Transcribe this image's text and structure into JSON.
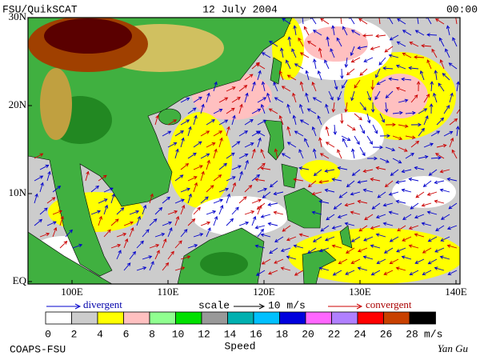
{
  "header": {
    "left": "FSU/QuikSCAT",
    "center": "12 July 2004",
    "right": "00:00"
  },
  "map": {
    "lat_labels": [
      "30N",
      "20N",
      "10N",
      "EQ"
    ],
    "lon_labels": [
      "100E",
      "110E",
      "120E",
      "130E",
      "140E"
    ]
  },
  "legend": {
    "divergent": "divergent",
    "scale": "scale",
    "scale_value": "10 m/s",
    "convergent": "convergent"
  },
  "colorbar": {
    "labels": [
      "0",
      "2",
      "4",
      "6",
      "8",
      "10",
      "12",
      "14",
      "16",
      "18",
      "20",
      "22",
      "24",
      "26",
      "28"
    ],
    "unit": "m/s",
    "colors": [
      "#ffffff",
      "#cccccc",
      "#ffff00",
      "#ffc0c0",
      "#90ff90",
      "#00e000",
      "#999999",
      "#00b0b0",
      "#00c0ff",
      "#0000dd",
      "#ff66ff",
      "#b080ff",
      "#ff0000",
      "#c84000",
      "#000000"
    ],
    "title": "Speed"
  },
  "footer": {
    "left": "COAPS-FSU",
    "right": "Yan Gu"
  }
}
